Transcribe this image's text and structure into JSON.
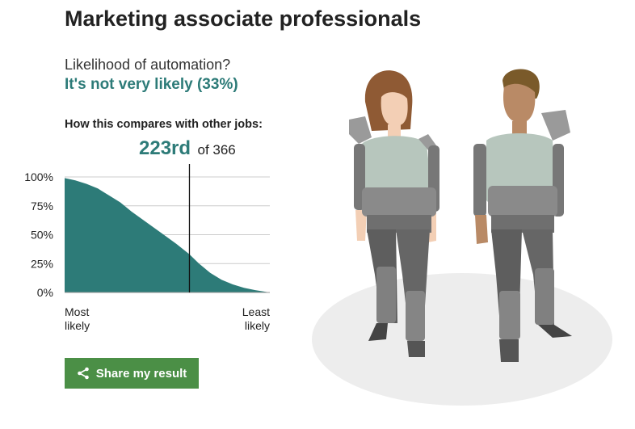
{
  "page": {
    "title": "Marketing associate professionals",
    "question": "Likelihood of automation?",
    "answer": "It's not very likely (33%)",
    "compare_heading": "How this compares with other jobs:",
    "rank": "223rd",
    "rank_of": "of 366",
    "share_label": "Share my result",
    "share_icon": "share-icon"
  },
  "colors": {
    "accent": "#2d7b78",
    "button": "#4b8f46",
    "grid": "#cccccc"
  },
  "chart_data": {
    "type": "area",
    "title": "",
    "xlabel_left": "Most likely",
    "xlabel_right": "Least likely",
    "ylabel": "",
    "ylim": [
      0,
      100
    ],
    "y_ticks": [
      "0%",
      "25%",
      "50%",
      "75%",
      "100%"
    ],
    "x_range": [
      1,
      366
    ],
    "marker_rank": 223,
    "series": [
      {
        "x": [
          1,
          20,
          40,
          60,
          80,
          100,
          120,
          140,
          160,
          180,
          200,
          223,
          240,
          260,
          280,
          300,
          320,
          340,
          366
        ],
        "y": [
          99,
          97,
          94,
          90,
          84,
          78,
          70,
          63,
          56,
          49,
          42,
          33,
          25,
          17,
          11,
          7,
          4,
          2,
          0
        ]
      }
    ],
    "grid": true
  }
}
